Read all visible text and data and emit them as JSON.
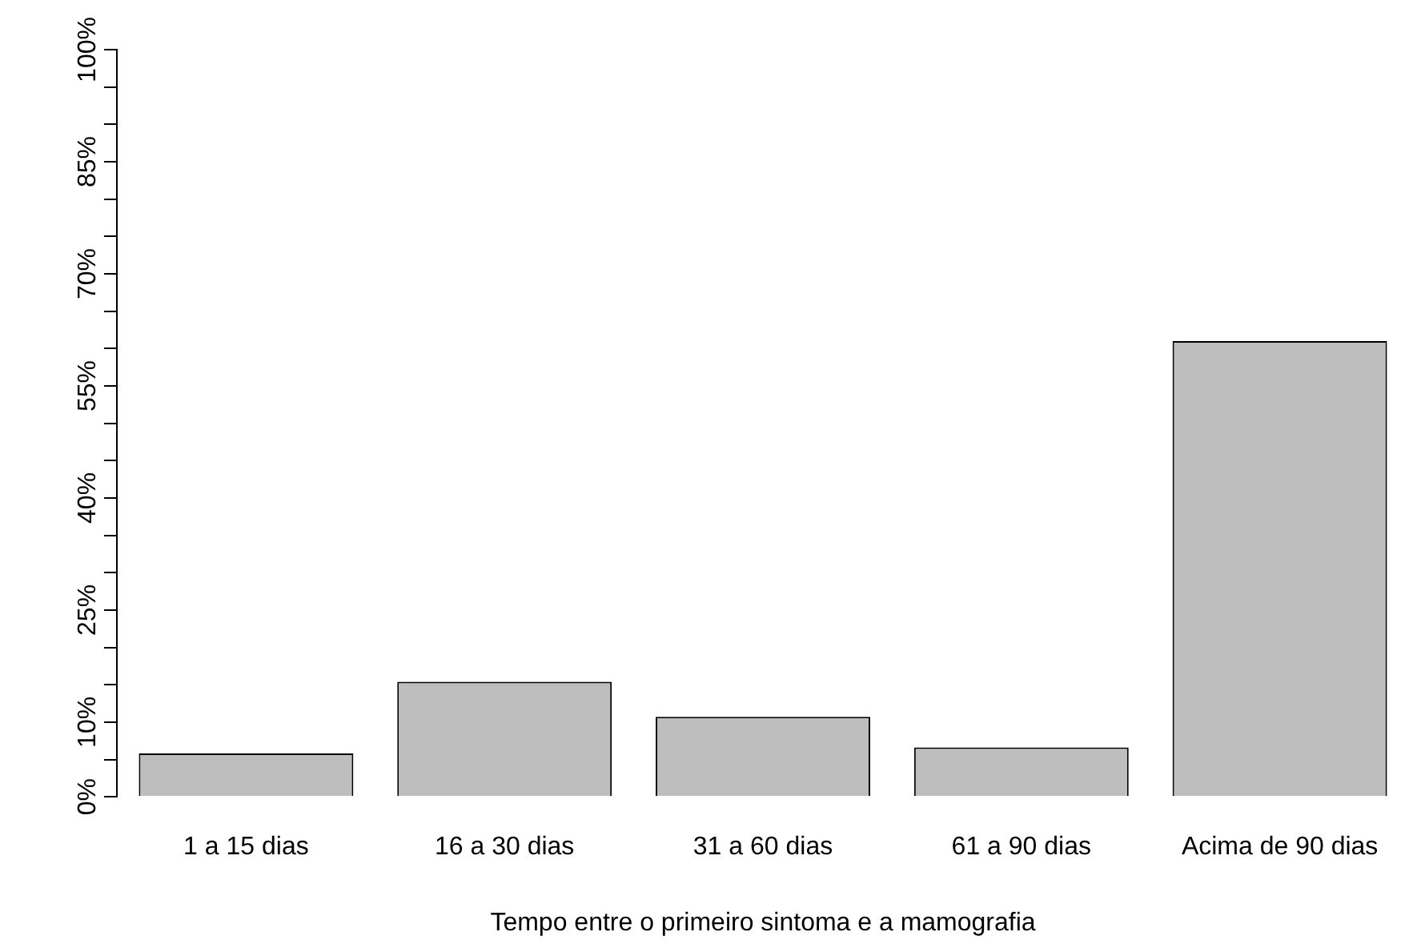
{
  "chart_data": {
    "type": "bar",
    "xlabel": "Tempo entre o primeiro sintoma e a mamografia",
    "categories": [
      "1 a 15 dias",
      "16 a 30 dias",
      "31 a 60 dias",
      "61 a 90 dias",
      "Acima de 90 dias"
    ],
    "values": [
      5.8,
      15.4,
      10.7,
      6.6,
      61.0
    ],
    "color": "#bebebe",
    "ylim": [
      0,
      100
    ],
    "yticks": [
      {
        "value": 0,
        "label": "0%"
      },
      {
        "value": 5,
        "label": null
      },
      {
        "value": 10,
        "label": "10%"
      },
      {
        "value": 15,
        "label": null
      },
      {
        "value": 20,
        "label": null
      },
      {
        "value": 25,
        "label": "25%"
      },
      {
        "value": 30,
        "label": null
      },
      {
        "value": 35,
        "label": null
      },
      {
        "value": 40,
        "label": "40%"
      },
      {
        "value": 45,
        "label": null
      },
      {
        "value": 50,
        "label": null
      },
      {
        "value": 55,
        "label": "55%"
      },
      {
        "value": 60,
        "label": null
      },
      {
        "value": 65,
        "label": null
      },
      {
        "value": 70,
        "label": "70%"
      },
      {
        "value": 75,
        "label": null
      },
      {
        "value": 80,
        "label": null
      },
      {
        "value": 85,
        "label": "85%"
      },
      {
        "value": 90,
        "label": null
      },
      {
        "value": 95,
        "label": null
      },
      {
        "value": 100,
        "label": "100%"
      }
    ],
    "grid": false,
    "legend": false
  }
}
